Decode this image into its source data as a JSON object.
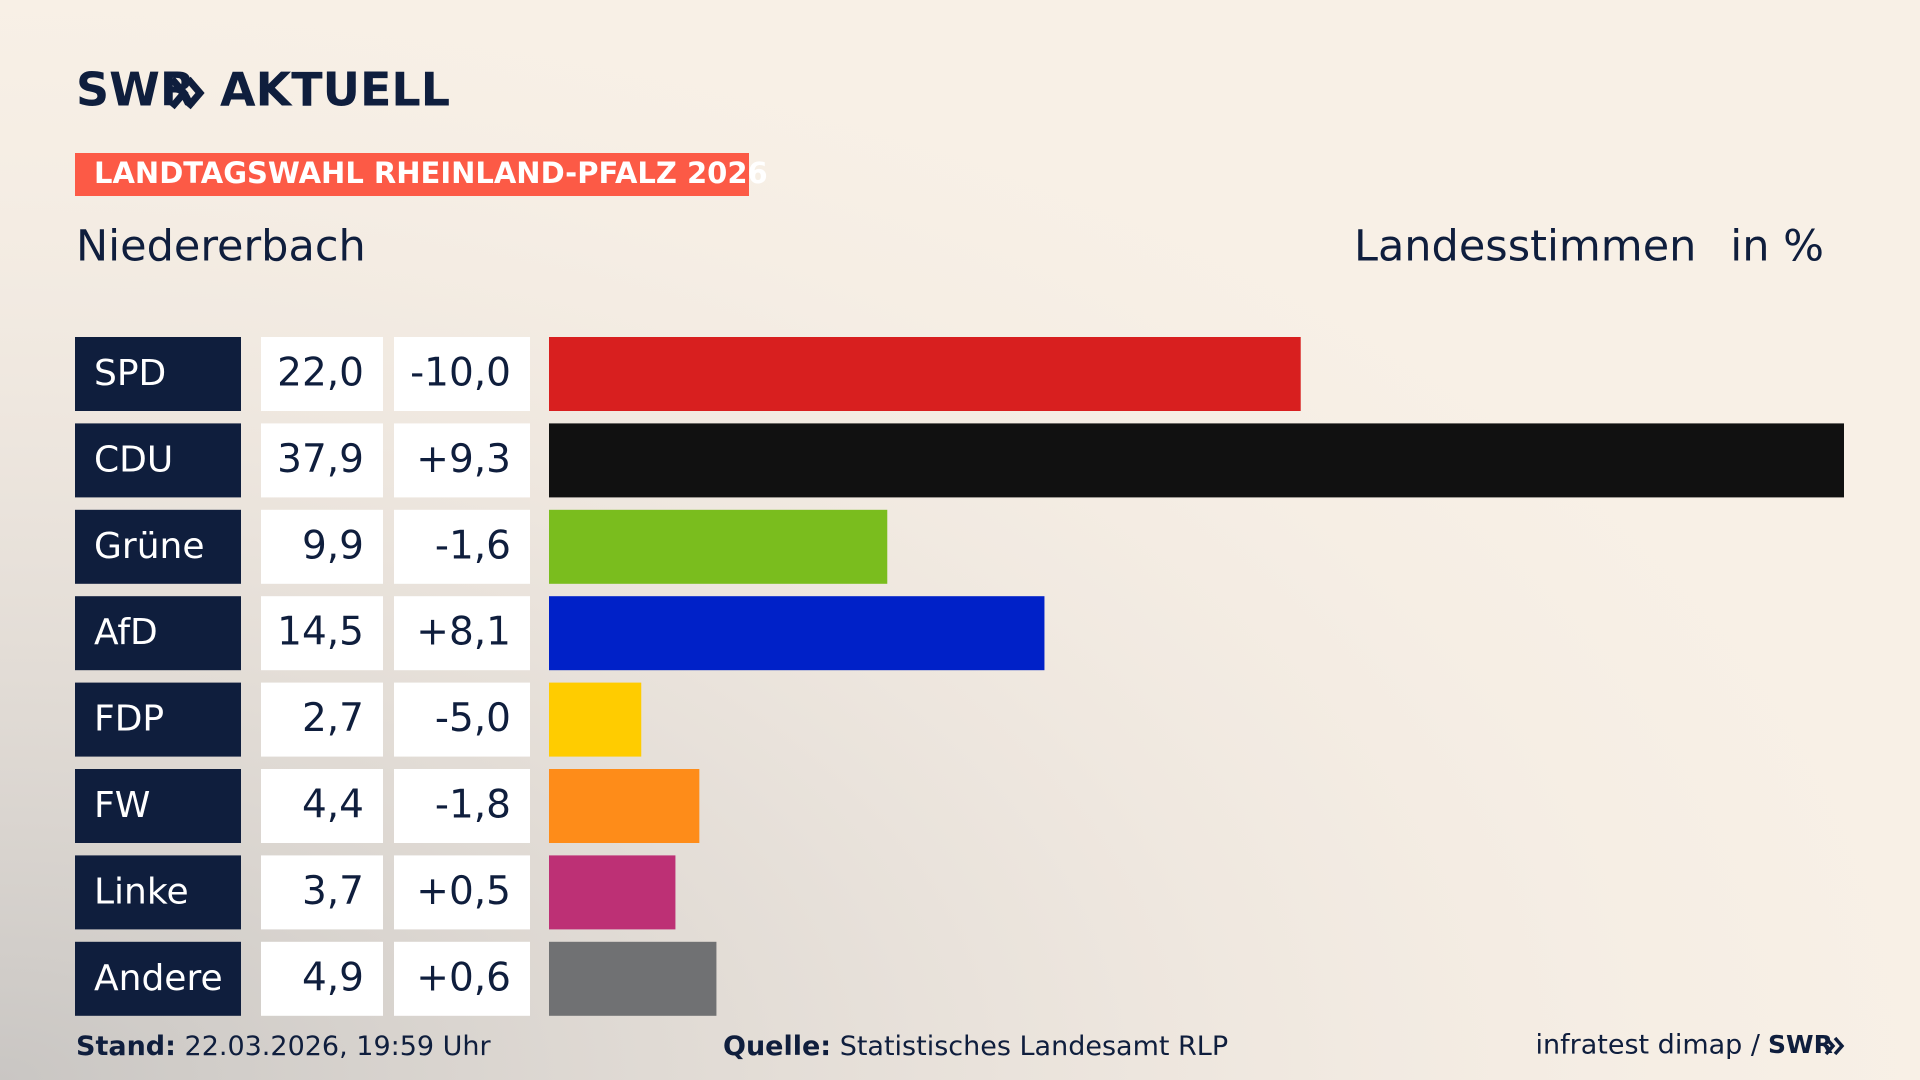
{
  "chart_data": {
    "type": "bar",
    "logo": "SWR",
    "logo_suffix": "AKTUELL",
    "banner": "LANDTAGSWAHL RHEINLAND-PFALZ 2026",
    "title": "Niedererbach",
    "value_heading": "Landesstimmen",
    "unit_label": "in %",
    "categories": [
      "SPD",
      "CDU",
      "Grüne",
      "AfD",
      "FDP",
      "FW",
      "Linke",
      "Andere"
    ],
    "values": [
      22.0,
      37.9,
      9.9,
      14.5,
      2.7,
      4.4,
      3.7,
      4.9
    ],
    "value_labels": [
      "22,0",
      "37,9",
      "9,9",
      "14,5",
      "2,7",
      "4,4",
      "3,7",
      "4,9"
    ],
    "changes": [
      -10.0,
      9.3,
      -1.6,
      8.1,
      -5.0,
      -1.8,
      0.5,
      0.6
    ],
    "change_labels": [
      "-10,0",
      "+9,3",
      "-1,6",
      "+8,1",
      "-5,0",
      "-1,8",
      "+0,5",
      "+0,6"
    ],
    "colors": [
      "#d81f1f",
      "#111111",
      "#7abd1e",
      "#0021c8",
      "#ffcc00",
      "#fe8c19",
      "#bd3075",
      "#707173"
    ],
    "xlim": [
      0,
      37.9
    ],
    "footer": {
      "stand_label": "Stand:",
      "stand": "22.03.2026, 19:59 Uhr",
      "source_label": "Quelle:",
      "source": "Statistisches Landesamt RLP",
      "credit": "infratest dimap /",
      "credit_logo": "SWR"
    }
  }
}
